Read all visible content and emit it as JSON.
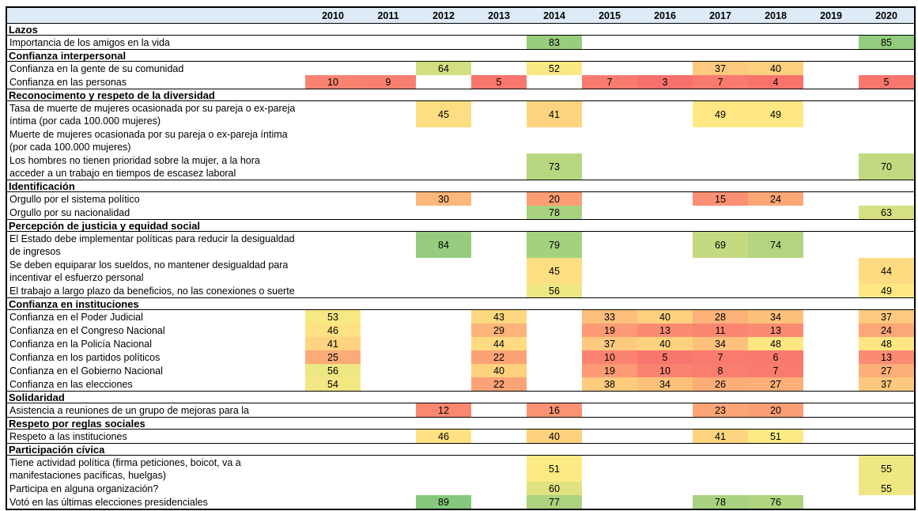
{
  "page": {
    "background_color": "#ffffff",
    "table_border_color": "#000000",
    "header_background": "#DEEBF7",
    "text_color": "#000000"
  },
  "chart_data": {
    "type": "heatmap",
    "title": "",
    "legend_position": "none",
    "grid": false,
    "value_range": [
      0,
      100
    ],
    "color_scale": {
      "min": 0,
      "mid": 50,
      "max": 100,
      "min_color": "#F8696B",
      "mid_color": "#FFEB84",
      "max_color": "#63BE7B"
    },
    "years": [
      "2010",
      "2011",
      "2012",
      "2013",
      "2014",
      "2015",
      "2016",
      "2017",
      "2018",
      "2019",
      "2020"
    ],
    "sections": [
      {
        "title": "Lazos",
        "rows": [
          {
            "label": [
              "Importancia de los amigos en la vida"
            ],
            "values": {
              "2014": 83,
              "2020": 85
            }
          }
        ]
      },
      {
        "title": "Confianza interpersonal",
        "rows": [
          {
            "label": [
              "Confianza en la gente de su comunidad"
            ],
            "values": {
              "2012": 64,
              "2014": 52,
              "2017": 37,
              "2018": 40
            }
          },
          {
            "label": [
              "Confianza en las personas"
            ],
            "values": {
              "2010": 10,
              "2011": 9,
              "2013": 5,
              "2015": 7,
              "2016": 3,
              "2017": 7,
              "2018": 4,
              "2020": 5
            }
          }
        ]
      },
      {
        "title": "Reconocimento y respeto de la diversidad",
        "rows": [
          {
            "label": [
              "Tasa de muerte de mujeres ocasionada por su pareja o ex-pareja",
              "íntima (por cada 100.000 mujeres)"
            ],
            "values": {
              "2012": 45,
              "2014": 41,
              "2017": 49,
              "2018": 49
            }
          },
          {
            "label": [
              "Muerte de mujeres ocasionada por su pareja o ex-pareja íntima",
              "(por cada 100.000 mujeres)"
            ],
            "values": {}
          },
          {
            "label": [
              "Los hombres no tienen prioridad sobre la mujer, a la hora",
              "acceder a un trabajo en tiempos de escasez laboral"
            ],
            "values": {
              "2014": 73,
              "2020": 70
            }
          }
        ]
      },
      {
        "title": "Identificación",
        "rows": [
          {
            "label": [
              "Orgullo por el sistema político"
            ],
            "values": {
              "2012": 30,
              "2014": 20,
              "2017": 15,
              "2018": 24
            }
          },
          {
            "label": [
              "Orgullo por su nacionalidad"
            ],
            "values": {
              "2014": 78,
              "2020": 63
            }
          }
        ]
      },
      {
        "title": "Percepción de justicia y equidad social",
        "rows": [
          {
            "label": [
              "El Estado debe implementar políticas para reducir la desigualdad",
              "de ingresos"
            ],
            "values": {
              "2012": 84,
              "2014": 79,
              "2017": 69,
              "2018": 74
            }
          },
          {
            "label": [
              "Se deben equiparar los sueldos, no mantener desigualdad para",
              "incentivar el esfuerzo personal"
            ],
            "values": {
              "2014": 45,
              "2020": 44
            }
          },
          {
            "label": [
              "El trabajo a largo plazo da beneficios, no las conexiones o suerte"
            ],
            "values": {
              "2014": 56,
              "2020": 49
            }
          }
        ]
      },
      {
        "title": "Confianza en instituciones",
        "rows": [
          {
            "label": [
              "Confianza en el Poder Judicial"
            ],
            "values": {
              "2010": 53,
              "2013": 43,
              "2015": 33,
              "2016": 40,
              "2017": 28,
              "2018": 34,
              "2020": 37
            }
          },
          {
            "label": [
              "Confianza en el Congreso Nacional"
            ],
            "values": {
              "2010": 46,
              "2013": 29,
              "2015": 19,
              "2016": 13,
              "2017": 11,
              "2018": 13,
              "2020": 24
            }
          },
          {
            "label": [
              "Confianza en la Policía Nacional"
            ],
            "values": {
              "2010": 41,
              "2013": 44,
              "2015": 37,
              "2016": 40,
              "2017": 34,
              "2018": 48,
              "2020": 48
            }
          },
          {
            "label": [
              "Confianza en los partidos políticos"
            ],
            "values": {
              "2010": 25,
              "2013": 22,
              "2015": 10,
              "2016": 5,
              "2017": 7,
              "2018": 6,
              "2020": 13
            }
          },
          {
            "label": [
              "Confianza en el Gobierno Nacional"
            ],
            "values": {
              "2010": 56,
              "2013": 40,
              "2015": 19,
              "2016": 10,
              "2017": 8,
              "2018": 7,
              "2020": 27
            }
          },
          {
            "label": [
              "Confianza en las elecciones"
            ],
            "values": {
              "2010": 54,
              "2013": 22,
              "2015": 38,
              "2016": 34,
              "2017": 26,
              "2018": 27,
              "2020": 37
            }
          }
        ]
      },
      {
        "title": "Solidaridad",
        "rows": [
          {
            "label": [
              "Asistencia a reuniones de un grupo de mejoras para la"
            ],
            "values": {
              "2012": 12,
              "2014": 16,
              "2017": 23,
              "2018": 20
            }
          }
        ]
      },
      {
        "title": "Respeto por reglas sociales",
        "rows": [
          {
            "label": [
              "Respeto a las instituciones"
            ],
            "values": {
              "2012": 46,
              "2014": 40,
              "2017": 41,
              "2018": 51
            }
          }
        ]
      },
      {
        "title": "Participación cívica",
        "rows": [
          {
            "label": [
              "Tiene actividad política (firma peticiones, boicot, va a",
              "manifestaciones pacíficas, huelgas)"
            ],
            "values": {
              "2014": 51,
              "2020": 55
            }
          },
          {
            "label": [
              "Participa en alguna organización?"
            ],
            "values": {
              "2014": 60,
              "2020": 55
            }
          },
          {
            "label": [
              "Votó en las últimas elecciones presidenciales"
            ],
            "values": {
              "2012": 89,
              "2014": 77,
              "2017": 78,
              "2018": 76
            }
          }
        ]
      }
    ]
  }
}
